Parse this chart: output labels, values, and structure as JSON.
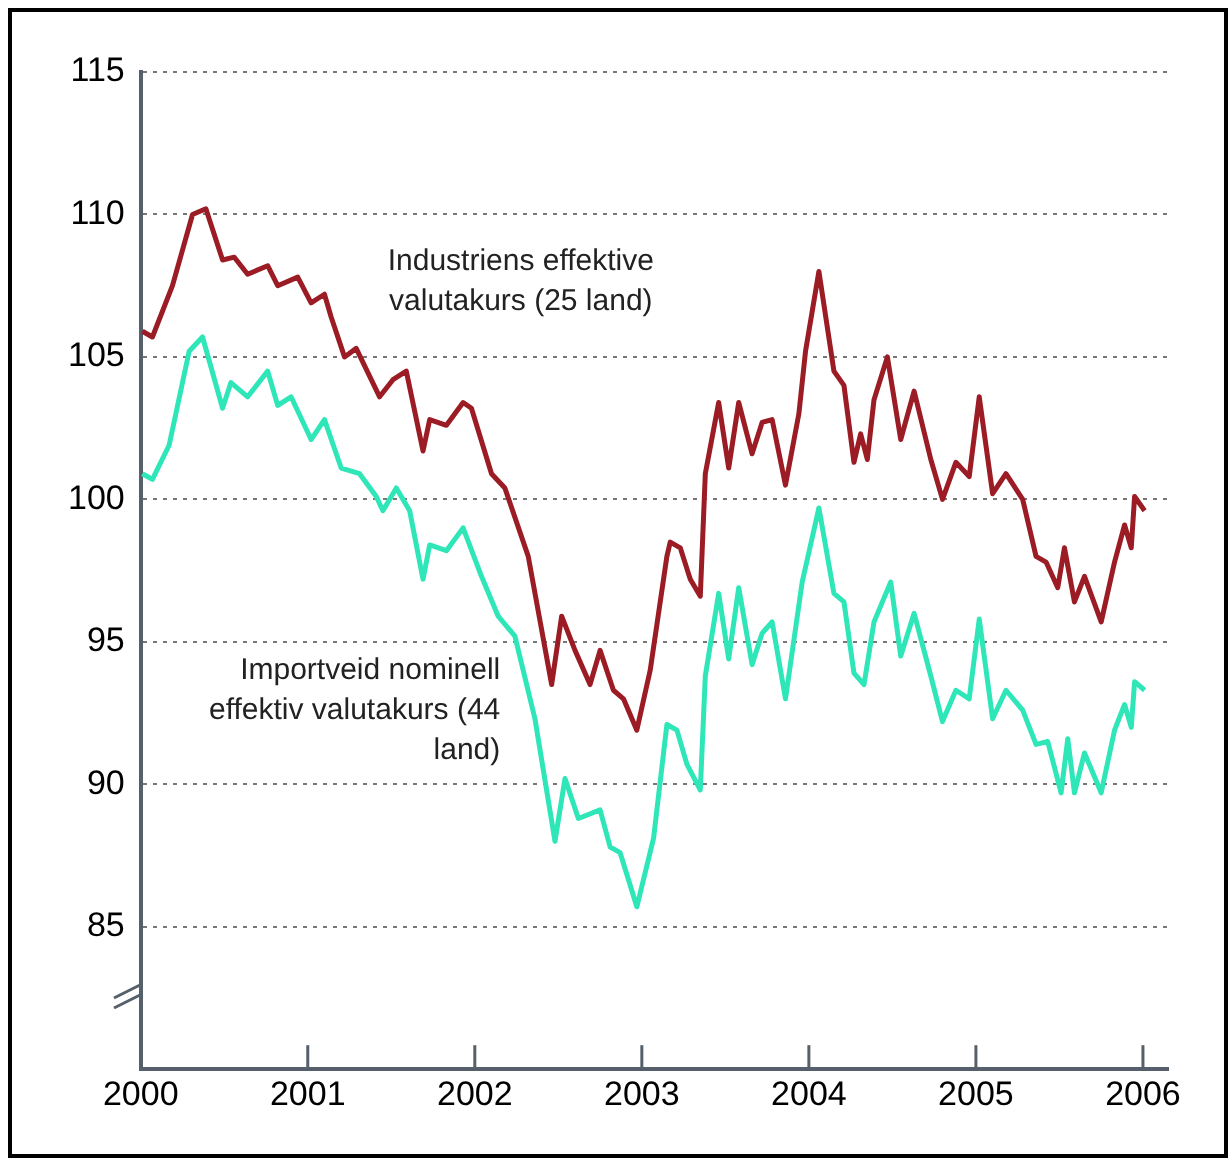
{
  "chart_data": {
    "type": "line",
    "series": [
      {
        "name": "Industriens effektive valutakurs (25 land)",
        "color": "#9b1c24",
        "x": [
          2000.01,
          2000.07,
          2000.19,
          2000.31,
          2000.39,
          2000.49,
          2000.56,
          2000.64,
          2000.76,
          2000.82,
          2000.94,
          2001.02,
          2001.1,
          2001.14,
          2001.22,
          2001.29,
          2001.43,
          2001.51,
          2001.59,
          2001.69,
          2001.73,
          2001.83,
          2001.93,
          2001.98,
          2002.1,
          2002.18,
          2002.32,
          2002.46,
          2002.52,
          2002.6,
          2002.69,
          2002.75,
          2002.83,
          2002.89,
          2002.97,
          2003.05,
          2003.15,
          2003.17,
          2003.23,
          2003.29,
          2003.35,
          2003.38,
          2003.46,
          2003.52,
          2003.58,
          2003.66,
          2003.72,
          2003.78,
          2003.86,
          2003.94,
          2003.98,
          2004.06,
          2004.15,
          2004.21,
          2004.27,
          2004.31,
          2004.35,
          2004.39,
          2004.47,
          2004.55,
          2004.63,
          2004.73,
          2004.8,
          2004.88,
          2004.96,
          2005.02,
          2005.1,
          2005.18,
          2005.28,
          2005.36,
          2005.42,
          2005.49,
          2005.53,
          2005.59,
          2005.65,
          2005.75,
          2005.83,
          2005.89,
          2005.93,
          2005.95,
          2006.01
        ],
        "values": [
          105.9,
          105.7,
          107.5,
          110.0,
          110.2,
          108.4,
          108.5,
          107.9,
          108.2,
          107.5,
          107.8,
          106.9,
          107.2,
          106.4,
          105.0,
          105.3,
          103.6,
          104.2,
          104.5,
          101.7,
          102.8,
          102.6,
          103.4,
          103.2,
          100.9,
          100.4,
          98.0,
          93.5,
          95.9,
          94.7,
          93.5,
          94.7,
          93.3,
          93.0,
          91.9,
          94.0,
          98.0,
          98.5,
          98.3,
          97.2,
          96.6,
          100.9,
          103.4,
          101.1,
          103.4,
          101.6,
          102.7,
          102.8,
          100.5,
          103.0,
          105.2,
          108.0,
          104.5,
          104.0,
          101.3,
          102.3,
          101.4,
          103.5,
          105.0,
          102.1,
          103.8,
          101.4,
          100.0,
          101.3,
          100.8,
          103.6,
          100.2,
          100.9,
          100.0,
          98.0,
          97.8,
          96.9,
          98.3,
          96.4,
          97.3,
          95.7,
          97.8,
          99.1,
          98.3,
          100.1,
          99.6
        ]
      },
      {
        "name": "Importveid nominell effektiv valutakurs (44 land)",
        "color": "#2ee6b8",
        "x": [
          2000.01,
          2000.07,
          2000.17,
          2000.29,
          2000.37,
          2000.49,
          2000.54,
          2000.64,
          2000.76,
          2000.82,
          2000.9,
          2001.02,
          2001.1,
          2001.2,
          2001.31,
          2001.41,
          2001.45,
          2001.53,
          2001.61,
          2001.69,
          2001.73,
          2001.83,
          2001.93,
          2002.04,
          2002.14,
          2002.24,
          2002.36,
          2002.48,
          2002.54,
          2002.62,
          2002.75,
          2002.81,
          2002.87,
          2002.97,
          2003.07,
          2003.15,
          2003.21,
          2003.27,
          2003.35,
          2003.38,
          2003.46,
          2003.52,
          2003.58,
          2003.66,
          2003.72,
          2003.78,
          2003.86,
          2003.96,
          2004.06,
          2004.15,
          2004.21,
          2004.27,
          2004.33,
          2004.39,
          2004.49,
          2004.55,
          2004.63,
          2004.73,
          2004.8,
          2004.88,
          2004.96,
          2005.02,
          2005.1,
          2005.18,
          2005.28,
          2005.36,
          2005.43,
          2005.51,
          2005.55,
          2005.59,
          2005.65,
          2005.75,
          2005.83,
          2005.89,
          2005.93,
          2005.95,
          2006.01
        ],
        "values": [
          100.9,
          100.7,
          101.9,
          105.2,
          105.7,
          103.2,
          104.1,
          103.6,
          104.5,
          103.3,
          103.6,
          102.1,
          102.8,
          101.1,
          100.9,
          100.1,
          99.6,
          100.4,
          99.6,
          97.2,
          98.4,
          98.2,
          99.0,
          97.3,
          95.9,
          95.2,
          92.3,
          88.0,
          90.2,
          88.8,
          89.1,
          87.8,
          87.6,
          85.7,
          88.1,
          92.1,
          91.9,
          90.7,
          89.8,
          93.8,
          96.7,
          94.4,
          96.9,
          94.2,
          95.3,
          95.7,
          93.0,
          97.1,
          99.7,
          96.7,
          96.4,
          93.9,
          93.5,
          95.7,
          97.1,
          94.5,
          96.0,
          93.8,
          92.2,
          93.3,
          93.0,
          95.8,
          92.3,
          93.3,
          92.6,
          91.4,
          91.5,
          89.7,
          91.6,
          89.7,
          91.1,
          89.7,
          91.9,
          92.8,
          92.0,
          93.6,
          93.3
        ]
      }
    ],
    "xlim": [
      2000,
      2006.15
    ],
    "xticks": [
      2000,
      2001,
      2002,
      2003,
      2004,
      2005,
      2006
    ],
    "ylim": [
      80,
      115
    ],
    "yticks": [
      85,
      90,
      95,
      100,
      105,
      110,
      115
    ],
    "grid": "y",
    "legend": false,
    "marker": "none",
    "line_style": "solid"
  }
}
